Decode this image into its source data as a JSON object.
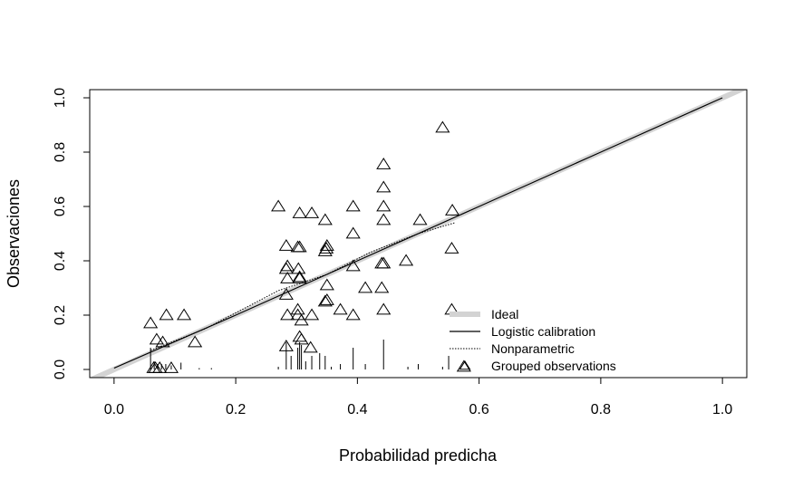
{
  "chart_data": {
    "type": "scatter",
    "title": "",
    "xlabel": "Probabilidad predicha",
    "ylabel": "Observaciones",
    "xlim": [
      -0.04,
      1.04
    ],
    "ylim": [
      -0.03,
      1.03
    ],
    "xticks": [
      "0.0",
      "0.2",
      "0.4",
      "0.6",
      "0.8",
      "1.0"
    ],
    "yticks": [
      "0.0",
      "0.2",
      "0.4",
      "0.6",
      "0.8",
      "1.0"
    ],
    "grid": false,
    "legend_position": "bottom-right",
    "legend": [
      {
        "label": "Ideal",
        "style": "thick-line",
        "color": "#d3d3d3"
      },
      {
        "label": "Logistic calibration",
        "style": "line",
        "color": "#000000"
      },
      {
        "label": "Nonparametric",
        "style": "dotted",
        "color": "#000000"
      },
      {
        "label": "Grouped observations",
        "style": "triangle",
        "color": "#000000"
      }
    ],
    "series": [
      {
        "name": "Ideal",
        "type": "line",
        "x": [
          -0.04,
          1.04
        ],
        "y": [
          -0.04,
          1.04
        ]
      },
      {
        "name": "Logistic calibration",
        "type": "line",
        "x": [
          0.0,
          0.2,
          0.4,
          0.6,
          0.8,
          1.0
        ],
        "y": [
          0.005,
          0.2,
          0.4,
          0.6,
          0.8,
          1.0
        ]
      },
      {
        "name": "Nonparametric",
        "type": "line",
        "x": [
          0.06,
          0.15,
          0.27,
          0.35,
          0.42,
          0.5,
          0.56
        ],
        "y": [
          0.07,
          0.15,
          0.29,
          0.35,
          0.43,
          0.5,
          0.54
        ]
      },
      {
        "name": "Grouped observations",
        "type": "scatter",
        "x": [
          0.54,
          0.443,
          0.443,
          0.27,
          0.393,
          0.443,
          0.305,
          0.325,
          0.347,
          0.443,
          0.556,
          0.503,
          0.283,
          0.305,
          0.302,
          0.349,
          0.393,
          0.35,
          0.347,
          0.555,
          0.303,
          0.48,
          0.285,
          0.283,
          0.393,
          0.44,
          0.443,
          0.305,
          0.285,
          0.305,
          0.35,
          0.413,
          0.44,
          0.35,
          0.347,
          0.283,
          0.302,
          0.372,
          0.302,
          0.325,
          0.393,
          0.443,
          0.555,
          0.06,
          0.086,
          0.115,
          0.285,
          0.308,
          0.07,
          0.08,
          0.133,
          0.305,
          0.308,
          0.283,
          0.323,
          0.065,
          0.068,
          0.075,
          0.094,
          0.575
        ],
        "y": [
          0.89,
          0.755,
          0.67,
          0.6,
          0.6,
          0.6,
          0.575,
          0.575,
          0.55,
          0.55,
          0.585,
          0.55,
          0.455,
          0.45,
          0.45,
          0.445,
          0.5,
          0.455,
          0.435,
          0.445,
          0.37,
          0.4,
          0.38,
          0.37,
          0.38,
          0.39,
          0.39,
          0.34,
          0.335,
          0.335,
          0.31,
          0.3,
          0.3,
          0.255,
          0.25,
          0.275,
          0.22,
          0.22,
          0.2,
          0.2,
          0.2,
          0.22,
          0.22,
          0.17,
          0.2,
          0.2,
          0.2,
          0.18,
          0.11,
          0.1,
          0.1,
          0.12,
          0.11,
          0.085,
          0.08,
          0.005,
          0.005,
          0.005,
          0.005,
          0.01
        ]
      },
      {
        "name": "Distribution spikes",
        "type": "spike",
        "x": [
          0.06,
          0.066,
          0.072,
          0.078,
          0.085,
          0.094,
          0.11,
          0.14,
          0.16,
          0.27,
          0.283,
          0.291,
          0.302,
          0.305,
          0.308,
          0.315,
          0.325,
          0.338,
          0.347,
          0.357,
          0.372,
          0.393,
          0.413,
          0.443,
          0.483,
          0.5,
          0.54,
          0.55
        ],
        "y": [
          0.08,
          0.03,
          0.02,
          0.02,
          0.02,
          0.015,
          0.025,
          0.005,
          0.005,
          0.01,
          0.1,
          0.05,
          0.08,
          0.1,
          0.09,
          0.03,
          0.05,
          0.06,
          0.05,
          0.01,
          0.02,
          0.08,
          0.02,
          0.11,
          0.01,
          0.02,
          0.01,
          0.05
        ]
      }
    ]
  }
}
